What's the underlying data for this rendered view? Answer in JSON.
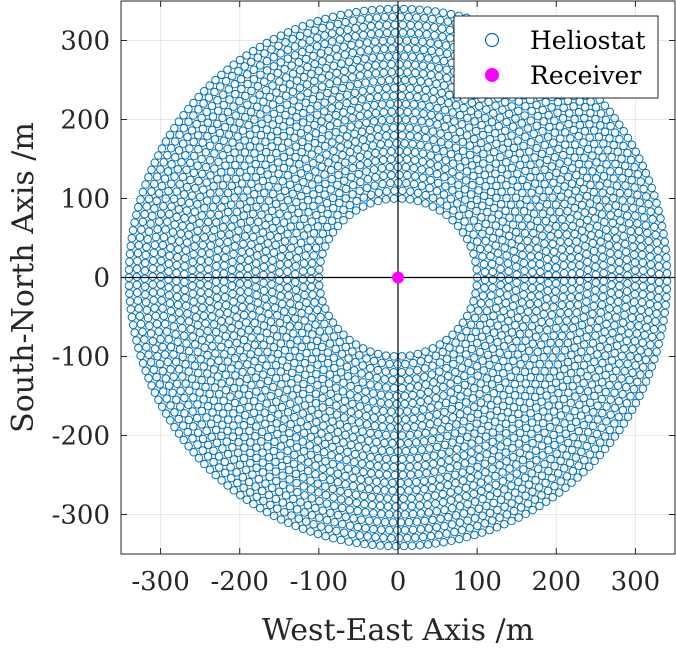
{
  "chart_data": {
    "type": "scatter",
    "xlabel": "West-East Axis /m",
    "ylabel": "South-North Axis /m",
    "xlim": [
      -350,
      350
    ],
    "ylim": [
      -350,
      350
    ],
    "xticks": [
      -300,
      -200,
      -100,
      0,
      100,
      200,
      300
    ],
    "yticks": [
      -300,
      -200,
      -100,
      0,
      100,
      200,
      300
    ],
    "xtick_labels": [
      "-300",
      "-200",
      "-100",
      "0",
      "100",
      "200",
      "300"
    ],
    "ytick_labels": [
      "-300",
      "-200",
      "-100",
      "0",
      "100",
      "200",
      "300"
    ],
    "grid": true,
    "legend_position": "top-right",
    "series": [
      {
        "name": "Heliostat",
        "marker": "open-circle",
        "color": "#0072BD",
        "layout": "radially staggered field",
        "inner_radius": 100,
        "outer_radius": 340,
        "ring_spacing": 10,
        "point_spacing": 10
      },
      {
        "name": "Receiver",
        "marker": "filled-circle",
        "color": "#FF00FF",
        "points": [
          [
            0,
            0
          ]
        ]
      }
    ]
  }
}
